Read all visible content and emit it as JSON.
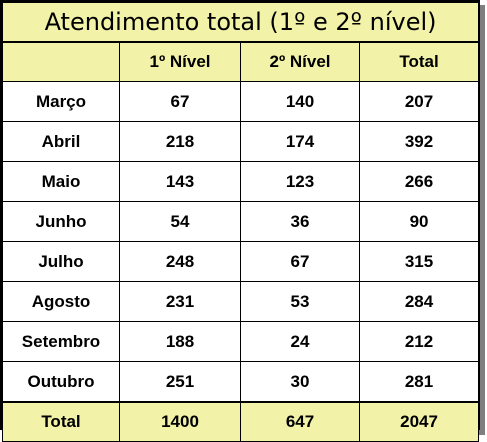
{
  "title": "Atendimento total (1º e 2º nível)",
  "columns": [
    "",
    "1º Nível",
    "2º Nível",
    "Total"
  ],
  "rows": [
    {
      "month": "Março",
      "n1": "67",
      "n2": "140",
      "total": "207"
    },
    {
      "month": "Abril",
      "n1": "218",
      "n2": "174",
      "total": "392"
    },
    {
      "month": "Maio",
      "n1": "143",
      "n2": "123",
      "total": "266"
    },
    {
      "month": "Junho",
      "n1": "54",
      "n2": "36",
      "total": "90"
    },
    {
      "month": "Julho",
      "n1": "248",
      "n2": "67",
      "total": "315"
    },
    {
      "month": "Agosto",
      "n1": "231",
      "n2": "53",
      "total": "284"
    },
    {
      "month": "Setembro",
      "n1": "188",
      "n2": "24",
      "total": "212"
    },
    {
      "month": "Outubro",
      "n1": "251",
      "n2": "30",
      "total": "281"
    }
  ],
  "totals": {
    "label": "Total",
    "n1": "1400",
    "n2": "647",
    "total": "2047"
  },
  "colors": {
    "header_fill": "#f2f2a8",
    "border": "#000000",
    "shadow": "#7f7f7f"
  }
}
